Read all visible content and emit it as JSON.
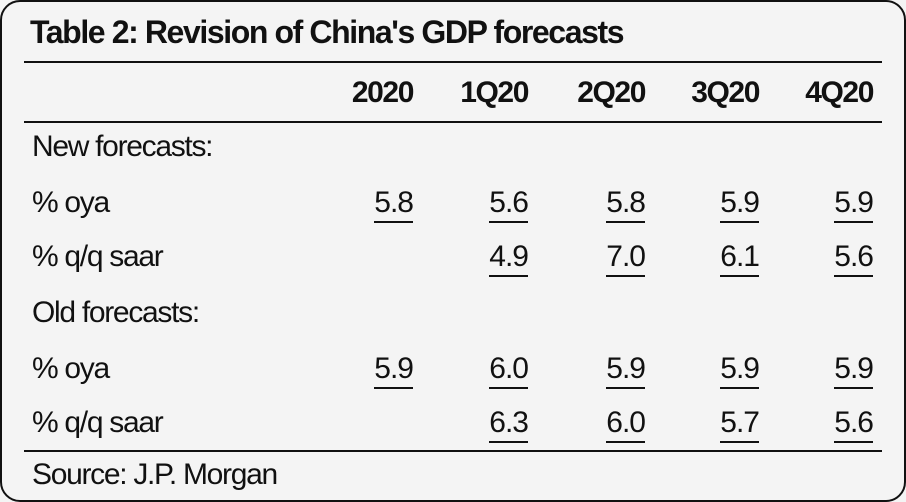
{
  "table": {
    "title": "Table 2: Revision of China's GDP forecasts",
    "columns": [
      "2020",
      "1Q20",
      "2Q20",
      "3Q20",
      "4Q20"
    ],
    "sections": [
      {
        "label": "New forecasts:",
        "rows": [
          {
            "label": "% oya",
            "values": [
              "5.8",
              "5.6",
              "5.8",
              "5.9",
              "5.9"
            ]
          },
          {
            "label": "% q/q saar",
            "values": [
              "",
              "4.9",
              "7.0",
              "6.1",
              "5.6"
            ]
          }
        ]
      },
      {
        "label": "Old forecasts:",
        "rows": [
          {
            "label": "% oya",
            "values": [
              "5.9",
              "6.0",
              "5.9",
              "5.9",
              "5.9"
            ]
          },
          {
            "label": "% q/q saar",
            "values": [
              "",
              "6.3",
              "6.0",
              "5.7",
              "5.6"
            ]
          }
        ]
      }
    ],
    "source": "Source: J.P. Morgan"
  }
}
